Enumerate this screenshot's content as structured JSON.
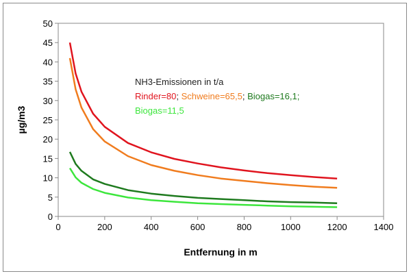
{
  "chart_data": {
    "type": "line",
    "title": "",
    "xlabel": "Entfernung in m",
    "ylabel": "µg/m3",
    "xlim": [
      0,
      1400
    ],
    "ylim": [
      0,
      50
    ],
    "xticks": [
      0,
      200,
      400,
      600,
      800,
      1000,
      1200,
      1400
    ],
    "yticks": [
      0,
      5,
      10,
      15,
      20,
      25,
      30,
      35,
      40,
      45,
      50
    ],
    "grid": false,
    "x": [
      50,
      75,
      100,
      150,
      200,
      300,
      400,
      500,
      600,
      700,
      800,
      900,
      1000,
      1100,
      1200
    ],
    "series": [
      {
        "name": "Rinder=80",
        "color": "#e0141e",
        "values": [
          45,
          37.0,
          32.3,
          26.6,
          23.2,
          19.0,
          16.6,
          14.9,
          13.7,
          12.7,
          11.9,
          11.2,
          10.7,
          10.2,
          9.8
        ]
      },
      {
        "name": "Schweine=65,5",
        "color": "#f07c1e",
        "values": [
          41,
          32.9,
          28.2,
          22.6,
          19.4,
          15.6,
          13.3,
          11.8,
          10.7,
          9.8,
          9.2,
          8.6,
          8.1,
          7.7,
          7.4
        ]
      },
      {
        "name": "Biogas=16,1",
        "color": "#1e7a1e",
        "values": [
          16.7,
          13.6,
          11.8,
          9.6,
          8.4,
          6.8,
          5.9,
          5.3,
          4.8,
          4.5,
          4.2,
          3.9,
          3.7,
          3.6,
          3.4
        ]
      },
      {
        "name": "Biogas=11,5",
        "color": "#3ce63c",
        "values": [
          12.5,
          10.1,
          8.7,
          7.1,
          6.1,
          4.9,
          4.2,
          3.8,
          3.4,
          3.2,
          3.0,
          2.8,
          2.6,
          2.5,
          2.4
        ]
      }
    ],
    "annotation": {
      "heading": "NH3-Emissionen in t/a",
      "line1": [
        "Rinder=80",
        "; ",
        "Schweine=65,5",
        "; ",
        "Biogas=16,1",
        ";"
      ],
      "line2": "Biogas=11,5"
    }
  }
}
